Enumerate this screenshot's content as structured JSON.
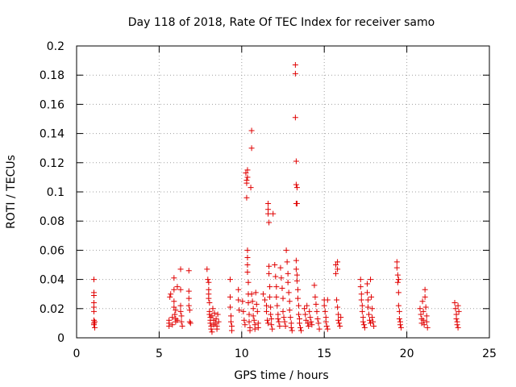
{
  "chart_data": {
    "type": "scatter",
    "title": "Day 118 of 2018, Rate Of TEC Index for receiver samo",
    "xlabel": "GPS time / hours",
    "ylabel": "ROTI / TECUs",
    "xlim": [
      0,
      25
    ],
    "ylim": [
      0,
      0.2
    ],
    "xticks": [
      "0",
      "5",
      "10",
      "15",
      "20",
      "25"
    ],
    "yticks": [
      "0",
      "0.02",
      "0.04",
      "0.06",
      "0.08",
      "0.1",
      "0.12",
      "0.14",
      "0.16",
      "0.18",
      "0.2"
    ],
    "grid": true,
    "marker": "plus",
    "color": "#e00000",
    "points": [
      [
        1.05,
        0.04
      ],
      [
        1.05,
        0.031
      ],
      [
        1.05,
        0.029
      ],
      [
        1.05,
        0.024
      ],
      [
        1.05,
        0.021
      ],
      [
        1.05,
        0.018
      ],
      [
        1.05,
        0.012
      ],
      [
        1.05,
        0.01
      ],
      [
        1.05,
        0.009
      ],
      [
        1.1,
        0.011
      ],
      [
        1.1,
        0.007
      ],
      [
        5.6,
        0.012
      ],
      [
        5.6,
        0.01
      ],
      [
        5.6,
        0.008
      ],
      [
        5.65,
        0.028
      ],
      [
        5.7,
        0.03
      ],
      [
        5.8,
        0.014
      ],
      [
        5.8,
        0.009
      ],
      [
        5.9,
        0.041
      ],
      [
        5.9,
        0.033
      ],
      [
        5.9,
        0.025
      ],
      [
        5.9,
        0.021
      ],
      [
        5.95,
        0.016
      ],
      [
        6.0,
        0.013
      ],
      [
        6.0,
        0.011
      ],
      [
        6.0,
        0.019
      ],
      [
        6.1,
        0.035
      ],
      [
        6.1,
        0.012
      ],
      [
        6.3,
        0.047
      ],
      [
        6.3,
        0.033
      ],
      [
        6.3,
        0.022
      ],
      [
        6.3,
        0.018
      ],
      [
        6.35,
        0.015
      ],
      [
        6.35,
        0.011
      ],
      [
        6.4,
        0.008
      ],
      [
        6.8,
        0.046
      ],
      [
        6.8,
        0.032
      ],
      [
        6.8,
        0.027
      ],
      [
        6.8,
        0.022
      ],
      [
        6.85,
        0.019
      ],
      [
        6.85,
        0.011
      ],
      [
        6.9,
        0.01
      ],
      [
        7.9,
        0.047
      ],
      [
        7.95,
        0.04
      ],
      [
        8.0,
        0.038
      ],
      [
        8.0,
        0.033
      ],
      [
        8.0,
        0.03
      ],
      [
        8.0,
        0.027
      ],
      [
        8.05,
        0.024
      ],
      [
        8.05,
        0.018
      ],
      [
        8.05,
        0.016
      ],
      [
        8.1,
        0.014
      ],
      [
        8.1,
        0.012
      ],
      [
        8.1,
        0.01
      ],
      [
        8.15,
        0.008
      ],
      [
        8.15,
        0.006
      ],
      [
        8.2,
        0.004
      ],
      [
        8.2,
        0.015
      ],
      [
        8.25,
        0.02
      ],
      [
        8.3,
        0.012
      ],
      [
        8.3,
        0.009
      ],
      [
        8.35,
        0.017
      ],
      [
        8.4,
        0.01
      ],
      [
        8.45,
        0.013
      ],
      [
        8.5,
        0.008
      ],
      [
        8.5,
        0.006
      ],
      [
        8.55,
        0.016
      ],
      [
        8.6,
        0.011
      ],
      [
        9.3,
        0.04
      ],
      [
        9.3,
        0.028
      ],
      [
        9.3,
        0.021
      ],
      [
        9.35,
        0.015
      ],
      [
        9.35,
        0.011
      ],
      [
        9.4,
        0.008
      ],
      [
        9.4,
        0.005
      ],
      [
        9.8,
        0.033
      ],
      [
        9.8,
        0.026
      ],
      [
        9.85,
        0.019
      ],
      [
        10.05,
        0.025
      ],
      [
        10.1,
        0.018
      ],
      [
        10.15,
        0.012
      ],
      [
        10.2,
        0.009
      ],
      [
        10.25,
        0.113
      ],
      [
        10.3,
        0.108
      ],
      [
        10.3,
        0.096
      ],
      [
        10.3,
        0.106
      ],
      [
        10.35,
        0.115
      ],
      [
        10.35,
        0.11
      ],
      [
        10.35,
        0.06
      ],
      [
        10.35,
        0.055
      ],
      [
        10.35,
        0.05
      ],
      [
        10.35,
        0.045
      ],
      [
        10.4,
        0.038
      ],
      [
        10.4,
        0.03
      ],
      [
        10.4,
        0.024
      ],
      [
        10.45,
        0.016
      ],
      [
        10.45,
        0.011
      ],
      [
        10.5,
        0.007
      ],
      [
        10.5,
        0.005
      ],
      [
        10.55,
        0.103
      ],
      [
        10.6,
        0.142
      ],
      [
        10.6,
        0.13
      ],
      [
        10.6,
        0.03
      ],
      [
        10.65,
        0.025
      ],
      [
        10.7,
        0.02
      ],
      [
        10.7,
        0.015
      ],
      [
        10.75,
        0.012
      ],
      [
        10.8,
        0.009
      ],
      [
        10.8,
        0.006
      ],
      [
        10.85,
        0.031
      ],
      [
        10.9,
        0.023
      ],
      [
        10.95,
        0.018
      ],
      [
        11.0,
        0.01
      ],
      [
        11.0,
        0.007
      ],
      [
        11.3,
        0.03
      ],
      [
        11.4,
        0.026
      ],
      [
        11.5,
        0.022
      ],
      [
        11.5,
        0.018
      ],
      [
        11.55,
        0.012
      ],
      [
        11.6,
        0.01
      ],
      [
        11.6,
        0.092
      ],
      [
        11.6,
        0.088
      ],
      [
        11.6,
        0.085
      ],
      [
        11.65,
        0.079
      ],
      [
        11.65,
        0.049
      ],
      [
        11.65,
        0.044
      ],
      [
        11.7,
        0.035
      ],
      [
        11.7,
        0.028
      ],
      [
        11.75,
        0.021
      ],
      [
        11.75,
        0.016
      ],
      [
        11.8,
        0.013
      ],
      [
        11.8,
        0.009
      ],
      [
        11.85,
        0.006
      ],
      [
        11.9,
        0.085
      ],
      [
        12.0,
        0.05
      ],
      [
        12.05,
        0.042
      ],
      [
        12.1,
        0.035
      ],
      [
        12.1,
        0.028
      ],
      [
        12.15,
        0.022
      ],
      [
        12.2,
        0.016
      ],
      [
        12.2,
        0.013
      ],
      [
        12.25,
        0.011
      ],
      [
        12.3,
        0.008
      ],
      [
        12.35,
        0.048
      ],
      [
        12.4,
        0.041
      ],
      [
        12.45,
        0.034
      ],
      [
        12.5,
        0.027
      ],
      [
        12.5,
        0.018
      ],
      [
        12.55,
        0.014
      ],
      [
        12.6,
        0.011
      ],
      [
        12.65,
        0.008
      ],
      [
        12.7,
        0.06
      ],
      [
        12.75,
        0.052
      ],
      [
        12.8,
        0.044
      ],
      [
        12.8,
        0.038
      ],
      [
        12.85,
        0.031
      ],
      [
        12.9,
        0.025
      ],
      [
        12.9,
        0.019
      ],
      [
        12.95,
        0.014
      ],
      [
        13.0,
        0.01
      ],
      [
        13.0,
        0.007
      ],
      [
        13.05,
        0.005
      ],
      [
        13.25,
        0.187
      ],
      [
        13.25,
        0.181
      ],
      [
        13.25,
        0.151
      ],
      [
        13.3,
        0.121
      ],
      [
        13.3,
        0.105
      ],
      [
        13.35,
        0.103
      ],
      [
        13.3,
        0.092
      ],
      [
        13.35,
        0.092
      ],
      [
        13.3,
        0.053
      ],
      [
        13.3,
        0.047
      ],
      [
        13.35,
        0.043
      ],
      [
        13.35,
        0.039
      ],
      [
        13.4,
        0.033
      ],
      [
        13.4,
        0.027
      ],
      [
        13.45,
        0.022
      ],
      [
        13.45,
        0.016
      ],
      [
        13.5,
        0.013
      ],
      [
        13.5,
        0.01
      ],
      [
        13.55,
        0.007
      ],
      [
        13.6,
        0.005
      ],
      [
        13.8,
        0.02
      ],
      [
        13.85,
        0.016
      ],
      [
        13.9,
        0.012
      ],
      [
        13.95,
        0.022
      ],
      [
        14.0,
        0.01
      ],
      [
        14.05,
        0.008
      ],
      [
        14.1,
        0.018
      ],
      [
        14.15,
        0.014
      ],
      [
        14.2,
        0.011
      ],
      [
        14.25,
        0.009
      ],
      [
        14.4,
        0.036
      ],
      [
        14.45,
        0.028
      ],
      [
        14.5,
        0.023
      ],
      [
        14.55,
        0.018
      ],
      [
        14.6,
        0.013
      ],
      [
        14.65,
        0.01
      ],
      [
        14.7,
        0.006
      ],
      [
        15.0,
        0.026
      ],
      [
        15.0,
        0.022
      ],
      [
        15.05,
        0.018
      ],
      [
        15.1,
        0.014
      ],
      [
        15.1,
        0.011
      ],
      [
        15.15,
        0.008
      ],
      [
        15.2,
        0.006
      ],
      [
        15.2,
        0.026
      ],
      [
        15.7,
        0.05
      ],
      [
        15.7,
        0.044
      ],
      [
        15.8,
        0.052
      ],
      [
        15.8,
        0.047
      ],
      [
        15.75,
        0.026
      ],
      [
        15.8,
        0.021
      ],
      [
        15.85,
        0.016
      ],
      [
        15.85,
        0.012
      ],
      [
        15.9,
        0.01
      ],
      [
        15.95,
        0.008
      ],
      [
        16.0,
        0.014
      ],
      [
        17.2,
        0.04
      ],
      [
        17.2,
        0.035
      ],
      [
        17.25,
        0.03
      ],
      [
        17.25,
        0.026
      ],
      [
        17.3,
        0.022
      ],
      [
        17.3,
        0.018
      ],
      [
        17.35,
        0.014
      ],
      [
        17.35,
        0.011
      ],
      [
        17.4,
        0.009
      ],
      [
        17.45,
        0.007
      ],
      [
        17.6,
        0.037
      ],
      [
        17.6,
        0.031
      ],
      [
        17.65,
        0.026
      ],
      [
        17.65,
        0.021
      ],
      [
        17.7,
        0.016
      ],
      [
        17.75,
        0.012
      ],
      [
        17.8,
        0.01
      ],
      [
        17.8,
        0.04
      ],
      [
        17.85,
        0.028
      ],
      [
        17.9,
        0.02
      ],
      [
        17.9,
        0.014
      ],
      [
        17.95,
        0.011
      ],
      [
        18.0,
        0.008
      ],
      [
        19.4,
        0.052
      ],
      [
        19.4,
        0.048
      ],
      [
        19.45,
        0.043
      ],
      [
        19.45,
        0.038
      ],
      [
        19.5,
        0.04
      ],
      [
        19.5,
        0.031
      ],
      [
        19.5,
        0.022
      ],
      [
        19.55,
        0.018
      ],
      [
        19.55,
        0.013
      ],
      [
        19.6,
        0.011
      ],
      [
        19.6,
        0.009
      ],
      [
        19.65,
        0.007
      ],
      [
        20.8,
        0.02
      ],
      [
        20.85,
        0.016
      ],
      [
        20.9,
        0.013
      ],
      [
        20.9,
        0.01
      ],
      [
        20.95,
        0.025
      ],
      [
        21.0,
        0.018
      ],
      [
        21.0,
        0.012
      ],
      [
        21.05,
        0.009
      ],
      [
        21.1,
        0.033
      ],
      [
        21.1,
        0.028
      ],
      [
        21.15,
        0.021
      ],
      [
        21.2,
        0.015
      ],
      [
        21.2,
        0.011
      ],
      [
        21.25,
        0.007
      ],
      [
        22.9,
        0.024
      ],
      [
        22.95,
        0.02
      ],
      [
        23.0,
        0.016
      ],
      [
        23.0,
        0.013
      ],
      [
        23.05,
        0.011
      ],
      [
        23.05,
        0.009
      ],
      [
        23.1,
        0.007
      ],
      [
        23.1,
        0.022
      ],
      [
        23.15,
        0.018
      ]
    ]
  }
}
